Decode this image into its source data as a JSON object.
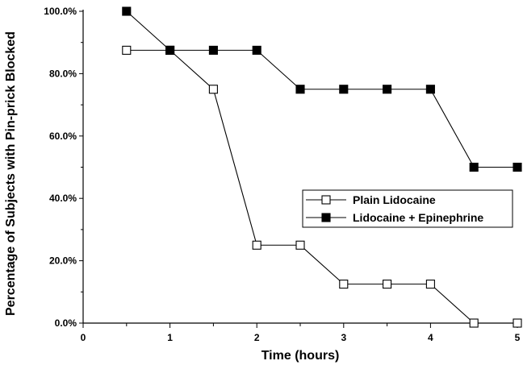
{
  "chart_data": {
    "type": "line",
    "xlabel": "Time (hours)",
    "ylabel": "Percentage of Subjects with Pin-prick Blocked",
    "xlim": [
      0,
      5
    ],
    "ylim": [
      0,
      100
    ],
    "x_ticks": [
      "0",
      "1",
      "2",
      "3",
      "4",
      "5"
    ],
    "y_ticks": [
      "0.0%",
      "20.0%",
      "40.0%",
      "60.0%",
      "80.0%",
      "100.0%"
    ],
    "grid": false,
    "legend_position": "center-right",
    "series": [
      {
        "name": "Plain Lidocaine",
        "marker": "open-square",
        "color": "#000000",
        "x": [
          0.5,
          1,
          1.5,
          2,
          2.5,
          3,
          3.5,
          4,
          4.5,
          5
        ],
        "y": [
          87.5,
          87.5,
          75,
          25,
          25,
          12.5,
          12.5,
          12.5,
          0,
          0
        ]
      },
      {
        "name": "Lidocaine + Epinephrine",
        "marker": "filled-square",
        "color": "#000000",
        "x": [
          0.5,
          1,
          1.5,
          2,
          2.5,
          3,
          3.5,
          4,
          4.5,
          5
        ],
        "y": [
          100,
          87.5,
          87.5,
          87.5,
          75,
          75,
          75,
          75,
          50,
          50
        ]
      }
    ]
  }
}
